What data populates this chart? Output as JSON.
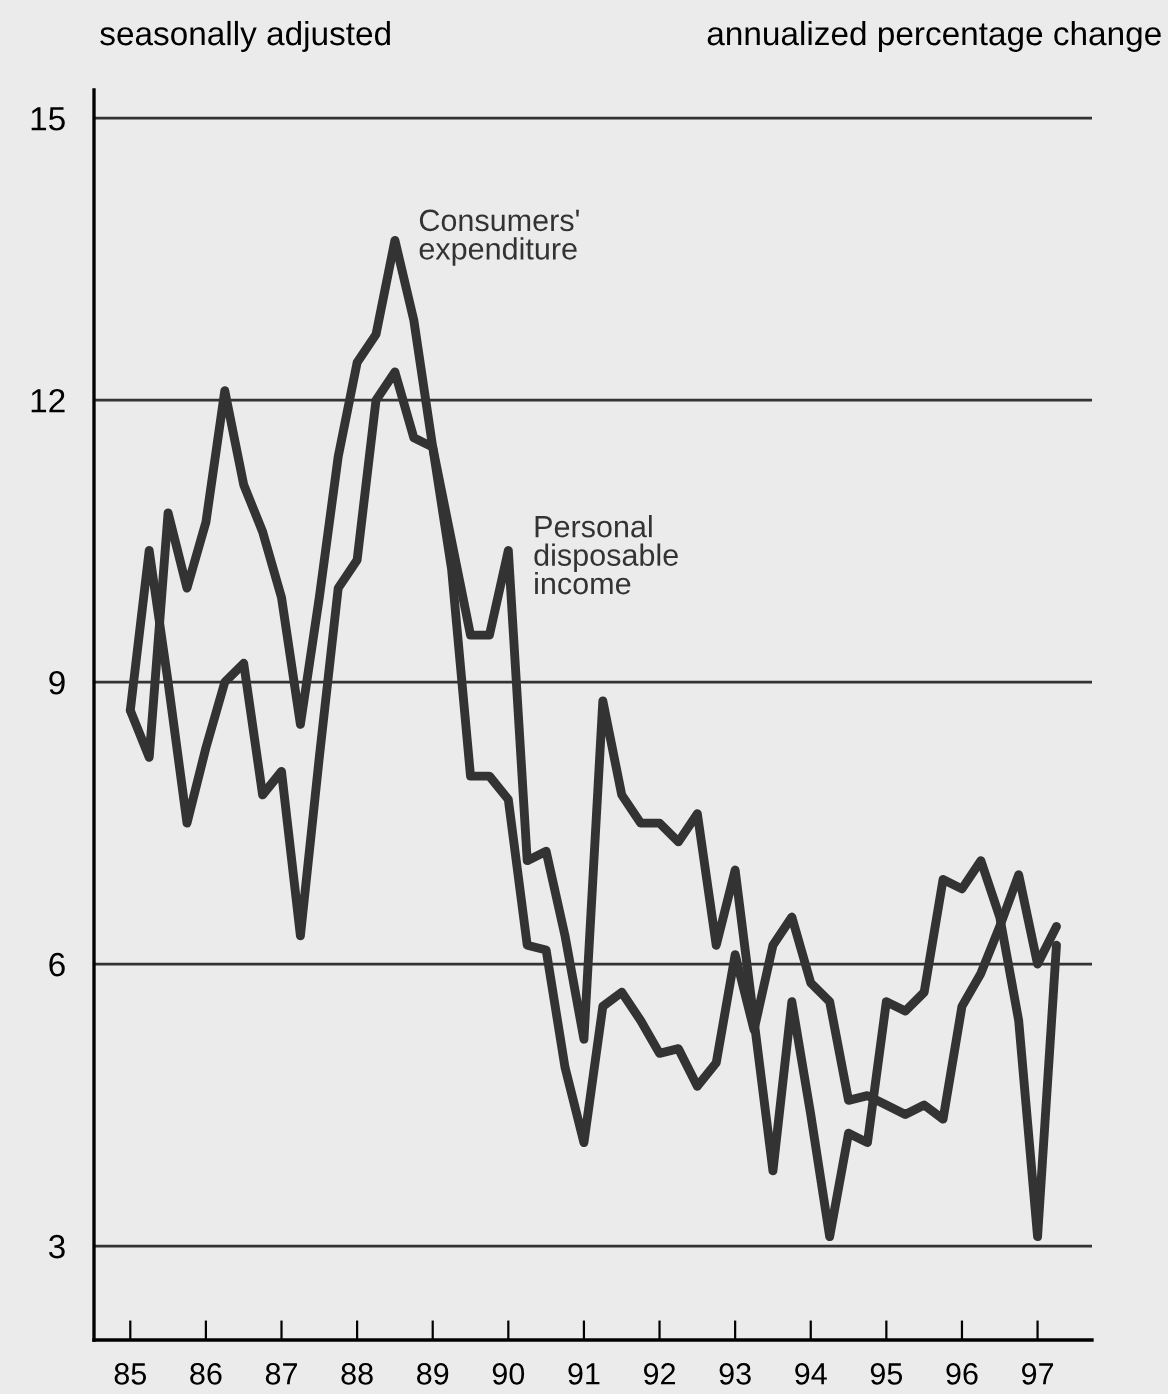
{
  "chart_data": {
    "type": "line",
    "x": [
      85,
      85.25,
      85.5,
      85.75,
      86,
      86.25,
      86.5,
      86.75,
      87,
      87.25,
      87.5,
      87.75,
      88,
      88.25,
      88.5,
      88.75,
      89,
      89.25,
      89.5,
      89.75,
      90,
      90.25,
      90.5,
      90.75,
      91,
      91.25,
      91.5,
      91.75,
      92,
      92.25,
      92.5,
      92.75,
      93,
      93.25,
      93.5,
      93.75,
      94,
      94.25,
      94.5,
      94.75,
      95,
      95.25,
      95.5,
      95.75,
      96,
      96.25,
      96.5,
      96.75,
      97,
      97.25
    ],
    "series": [
      {
        "name": "Consumers' expenditure",
        "color": "#333333",
        "values": [
          8.7,
          8.2,
          10.8,
          10.0,
          10.7,
          12.1,
          11.1,
          10.6,
          9.9,
          8.55,
          9.9,
          11.4,
          12.4,
          12.7,
          13.7,
          12.85,
          11.5,
          10.2,
          8.0,
          8.0,
          7.75,
          6.2,
          6.15,
          4.9,
          4.1,
          5.55,
          5.7,
          5.4,
          5.05,
          5.1,
          4.7,
          4.95,
          6.1,
          5.3,
          6.2,
          6.5,
          5.8,
          5.6,
          4.55,
          4.6,
          4.5,
          4.4,
          4.5,
          4.35,
          5.55,
          5.9,
          6.4,
          6.95,
          6.0,
          6.4
        ]
      },
      {
        "name": "Personal disposable income",
        "color": "#333333",
        "values": [
          8.7,
          10.4,
          9.0,
          7.5,
          8.3,
          9.0,
          9.2,
          7.8,
          8.05,
          6.3,
          8.2,
          10.0,
          10.3,
          12.0,
          12.3,
          11.6,
          11.5,
          10.5,
          9.5,
          9.5,
          10.4,
          7.1,
          7.2,
          6.3,
          5.2,
          8.8,
          7.8,
          7.5,
          7.5,
          7.3,
          7.6,
          6.2,
          7.0,
          5.4,
          3.8,
          5.6,
          4.4,
          3.1,
          4.2,
          4.1,
          5.6,
          5.5,
          5.7,
          6.9,
          6.8,
          7.1,
          6.5,
          5.4,
          3.1,
          6.2
        ]
      }
    ],
    "xlim": [
      84.52,
      97.72
    ],
    "ylim": [
      2,
      15.3
    ],
    "xticks": [
      85,
      86,
      87,
      88,
      89,
      90,
      91,
      92,
      93,
      94,
      95,
      96,
      97
    ],
    "yticks": [
      3,
      6,
      9,
      12,
      15
    ],
    "grid": "y",
    "legend": false,
    "line_style": "solid",
    "marker": "none",
    "annotations": [
      "seasonally adjusted",
      "annualized percentage change"
    ]
  }
}
